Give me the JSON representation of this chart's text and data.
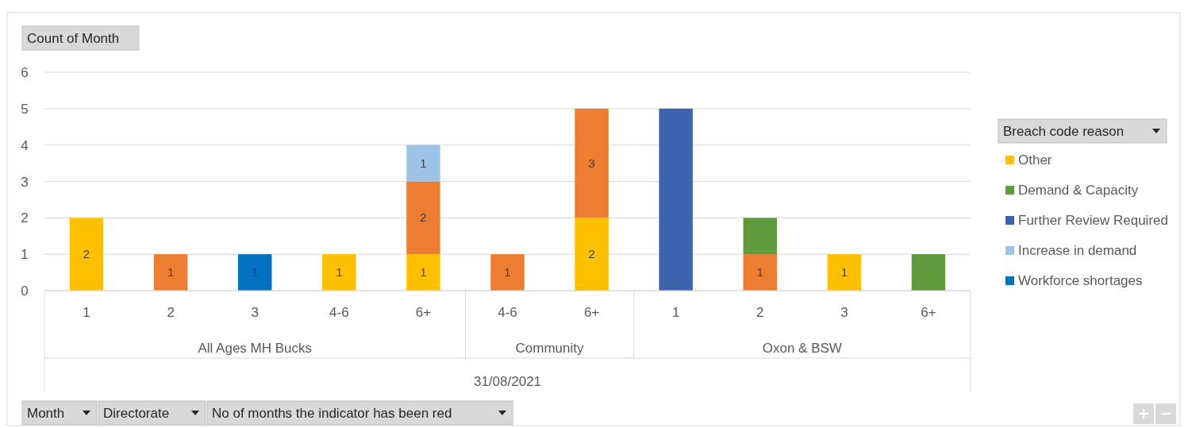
{
  "chart_data": {
    "type": "bar",
    "stacked": true,
    "ylabel": "Count of Month",
    "legend_title": "Breach code reason",
    "legend": "right",
    "grid": "y",
    "categories": [
      "1",
      "2",
      "3",
      "4-6",
      "6+",
      "4-6",
      "6+",
      "1",
      "2",
      "3",
      "6+"
    ],
    "series": [
      {
        "name": "Other",
        "color": "#ffc000",
        "values": [
          2,
          null,
          null,
          1,
          1,
          null,
          2,
          null,
          null,
          1,
          null
        ],
        "value_labels": [
          "2",
          null,
          null,
          "1",
          "1",
          null,
          "2",
          null,
          null,
          "1",
          null
        ]
      },
      {
        "color": "#ed7d31",
        "values": [
          null,
          1,
          null,
          null,
          2,
          1,
          3,
          null,
          1,
          null,
          null
        ],
        "value_labels": [
          null,
          "1",
          null,
          null,
          "2",
          "1",
          "3",
          null,
          "1",
          null,
          null
        ]
      },
      {
        "name": "Demand & Capacity",
        "color": "#5f9a3c",
        "values": [
          null,
          null,
          null,
          null,
          null,
          null,
          null,
          null,
          1,
          null,
          1
        ],
        "value_labels": [
          null,
          null,
          null,
          null,
          null,
          null,
          null,
          null,
          null,
          null,
          null
        ]
      },
      {
        "name": "Further Review Required",
        "color": "#3d63ad",
        "values": [
          null,
          null,
          null,
          null,
          null,
          null,
          null,
          5,
          null,
          null,
          null
        ],
        "value_labels": [
          null,
          null,
          null,
          null,
          null,
          null,
          null,
          null,
          null,
          null,
          null
        ]
      },
      {
        "name": "Increase in demand",
        "color": "#9dc3e6",
        "values": [
          null,
          null,
          null,
          null,
          1,
          null,
          null,
          null,
          null,
          null,
          null
        ],
        "value_labels": [
          null,
          null,
          null,
          null,
          "1",
          null,
          null,
          null,
          null,
          null,
          null
        ]
      },
      {
        "name": "Workforce shortages",
        "color": "#0070c0",
        "values": [
          null,
          null,
          1,
          null,
          null,
          null,
          null,
          null,
          null,
          null,
          null
        ],
        "value_labels": [
          null,
          null,
          "1",
          null,
          null,
          null,
          null,
          null,
          null,
          null,
          null
        ]
      }
    ],
    "ylim": [
      0,
      6
    ],
    "yticks": [
      0,
      1,
      2,
      3,
      4,
      5,
      6
    ],
    "annotations": [
      "All Ages MH Bucks",
      "Community",
      "Oxon & BSW",
      "31/08/2021",
      "Month",
      "Directorate",
      "No of months the indicator has been red"
    ]
  }
}
